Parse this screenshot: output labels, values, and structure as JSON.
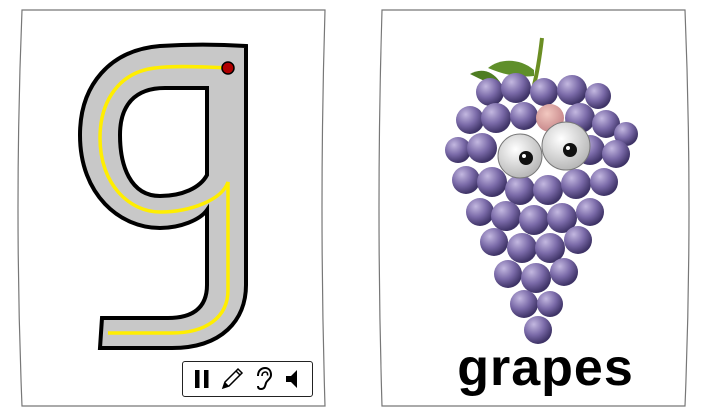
{
  "left_card": {
    "letter": "g",
    "letter_icon": "letter-g-tracing-icon",
    "toolbar": {
      "pause_icon": "pause-icon",
      "pencil_icon": "pencil-icon",
      "ear_icon": "ear-icon",
      "speaker_icon": "speaker-icon"
    }
  },
  "right_card": {
    "image_icon": "grapes-with-eyes-icon",
    "word": "grapes"
  },
  "colors": {
    "letter_fill": "#c8c8c8",
    "trace_line": "#ffee00",
    "start_dot": "#b00000",
    "grape": "#7a6aa8",
    "stem": "#6b8e23"
  }
}
